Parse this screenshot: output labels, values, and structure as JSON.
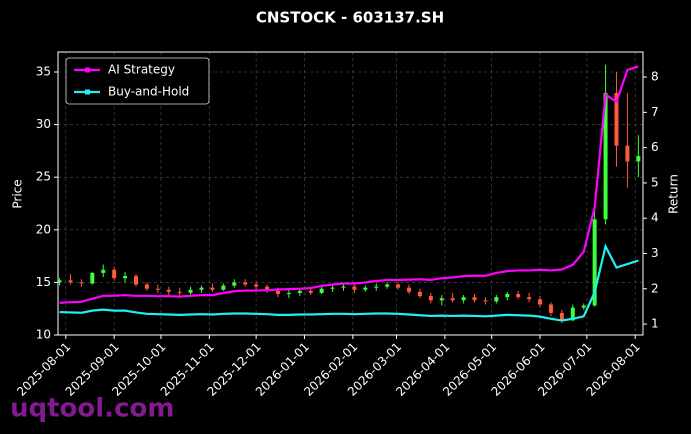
{
  "chart_data": {
    "type": "candlestick",
    "title": "CNSTOCK - 603137.SH",
    "ylabel": "Price",
    "y2label": "Return",
    "watermark": "uqtool.com",
    "x": [
      "2025-07-28",
      "2025-08-04",
      "2025-08-11",
      "2025-08-18",
      "2025-08-25",
      "2025-09-01",
      "2025-09-08",
      "2025-09-15",
      "2025-09-22",
      "2025-09-29",
      "2025-10-06",
      "2025-10-13",
      "2025-10-20",
      "2025-10-27",
      "2025-11-03",
      "2025-11-10",
      "2025-11-17",
      "2025-11-24",
      "2025-12-01",
      "2025-12-08",
      "2025-12-15",
      "2025-12-22",
      "2025-12-29",
      "2026-01-05",
      "2026-01-12",
      "2026-01-19",
      "2026-01-26",
      "2026-02-02",
      "2026-02-09",
      "2026-02-16",
      "2026-02-23",
      "2026-03-02",
      "2026-03-09",
      "2026-03-16",
      "2026-03-23",
      "2026-03-30",
      "2026-04-06",
      "2026-04-13",
      "2026-04-20",
      "2026-04-27",
      "2026-05-04",
      "2026-05-11",
      "2026-05-18",
      "2026-05-25",
      "2026-06-01",
      "2026-06-08",
      "2026-06-15",
      "2026-06-22",
      "2026-06-29",
      "2026-07-06",
      "2026-07-13",
      "2026-07-20",
      "2026-07-27",
      "2026-08-03"
    ],
    "open": [
      15.0,
      15.2,
      15.0,
      14.9,
      15.9,
      16.2,
      15.4,
      15.6,
      14.8,
      14.4,
      14.3,
      14.1,
      14.0,
      14.3,
      14.5,
      14.3,
      14.7,
      15.0,
      14.8,
      14.6,
      14.2,
      13.9,
      14.0,
      14.2,
      14.0,
      14.4,
      14.5,
      14.6,
      14.3,
      14.5,
      14.6,
      14.8,
      14.5,
      14.1,
      13.7,
      13.3,
      13.5,
      13.3,
      13.6,
      13.3,
      13.2,
      13.6,
      13.9,
      13.6,
      13.4,
      12.9,
      12.1,
      11.4,
      12.6,
      12.8,
      21.0,
      33.0,
      28.0,
      26.5
    ],
    "high": [
      15.4,
      15.8,
      15.3,
      16.0,
      16.7,
      16.5,
      16.0,
      15.8,
      15.0,
      14.8,
      14.6,
      14.5,
      14.6,
      14.7,
      14.9,
      14.9,
      15.3,
      15.3,
      15.1,
      14.8,
      14.5,
      14.3,
      14.4,
      14.5,
      14.6,
      14.8,
      14.9,
      14.8,
      14.7,
      14.9,
      15.0,
      15.0,
      14.8,
      14.4,
      14.0,
      13.8,
      14.0,
      13.8,
      13.9,
      13.6,
      13.8,
      14.1,
      14.2,
      14.0,
      13.7,
      13.1,
      12.4,
      12.9,
      13.0,
      22.0,
      35.7,
      35.0,
      33.0,
      29.0
    ],
    "low": [
      14.7,
      14.8,
      14.6,
      14.8,
      15.5,
      15.2,
      15.0,
      14.6,
      14.2,
      14.0,
      13.8,
      13.5,
      13.8,
      14.0,
      14.1,
      14.2,
      14.5,
      14.6,
      14.3,
      14.0,
      13.6,
      13.5,
      13.7,
      13.8,
      13.9,
      14.1,
      14.2,
      14.0,
      14.1,
      14.2,
      14.4,
      14.3,
      13.9,
      13.5,
      13.0,
      12.8,
      13.1,
      13.0,
      13.1,
      12.9,
      13.0,
      13.3,
      13.4,
      13.1,
      12.6,
      11.8,
      11.1,
      11.3,
      12.4,
      12.7,
      20.5,
      26.0,
      24.0,
      25.0
    ],
    "close": [
      15.2,
      15.0,
      14.9,
      15.9,
      16.2,
      15.4,
      15.6,
      14.8,
      14.4,
      14.3,
      14.1,
      14.0,
      14.3,
      14.5,
      14.3,
      14.7,
      15.0,
      14.8,
      14.6,
      14.2,
      13.9,
      14.0,
      14.2,
      14.0,
      14.4,
      14.5,
      14.6,
      14.3,
      14.5,
      14.6,
      14.8,
      14.5,
      14.1,
      13.7,
      13.3,
      13.5,
      13.3,
      13.6,
      13.3,
      13.2,
      13.6,
      13.9,
      13.6,
      13.4,
      12.9,
      12.1,
      11.4,
      12.6,
      12.8,
      21.0,
      33.0,
      28.0,
      26.5,
      27.0
    ],
    "up_color": "#3cff3c",
    "down_color": "#ff5a3c",
    "series": [
      {
        "name": "AI Strategy",
        "color": "#ff00ff",
        "axis": "y2",
        "values": [
          1.6,
          1.62,
          1.63,
          1.72,
          1.8,
          1.8,
          1.82,
          1.8,
          1.8,
          1.79,
          1.79,
          1.78,
          1.8,
          1.82,
          1.82,
          1.88,
          1.93,
          1.95,
          1.95,
          1.96,
          1.98,
          1.99,
          2.0,
          2.02,
          2.08,
          2.12,
          2.15,
          2.15,
          2.18,
          2.22,
          2.25,
          2.25,
          2.26,
          2.27,
          2.25,
          2.3,
          2.32,
          2.36,
          2.37,
          2.37,
          2.45,
          2.5,
          2.52,
          2.52,
          2.54,
          2.52,
          2.55,
          2.68,
          3.05,
          4.3,
          7.5,
          7.3,
          8.2,
          8.3
        ]
      },
      {
        "name": "Buy-and-Hold",
        "color": "#22f0f0",
        "axis": "y2",
        "values": [
          1.34,
          1.33,
          1.32,
          1.38,
          1.41,
          1.38,
          1.38,
          1.33,
          1.29,
          1.28,
          1.27,
          1.26,
          1.27,
          1.28,
          1.27,
          1.29,
          1.3,
          1.3,
          1.29,
          1.28,
          1.26,
          1.26,
          1.27,
          1.27,
          1.28,
          1.29,
          1.29,
          1.28,
          1.29,
          1.3,
          1.3,
          1.29,
          1.27,
          1.25,
          1.23,
          1.24,
          1.23,
          1.24,
          1.23,
          1.22,
          1.24,
          1.26,
          1.25,
          1.24,
          1.21,
          1.15,
          1.1,
          1.15,
          1.22,
          1.9,
          3.2,
          2.6,
          2.7,
          2.8
        ]
      }
    ],
    "xlim": [
      "2025-07-27",
      "2026-08-06"
    ],
    "xticks": [
      "2025-08-01",
      "2025-09-01",
      "2025-10-01",
      "2025-11-01",
      "2025-12-01",
      "2026-01-01",
      "2026-02-01",
      "2026-03-01",
      "2026-04-01",
      "2026-05-01",
      "2026-06-01",
      "2026-07-01",
      "2026-08-01"
    ],
    "ylim": [
      10,
      36.9
    ],
    "yticks": [
      10,
      15,
      20,
      25,
      30,
      35
    ],
    "y2lim": [
      0.69,
      8.71
    ],
    "y2ticks": [
      1,
      2,
      3,
      4,
      5,
      6,
      7,
      8
    ],
    "grid": true,
    "legend": "upper-left"
  }
}
